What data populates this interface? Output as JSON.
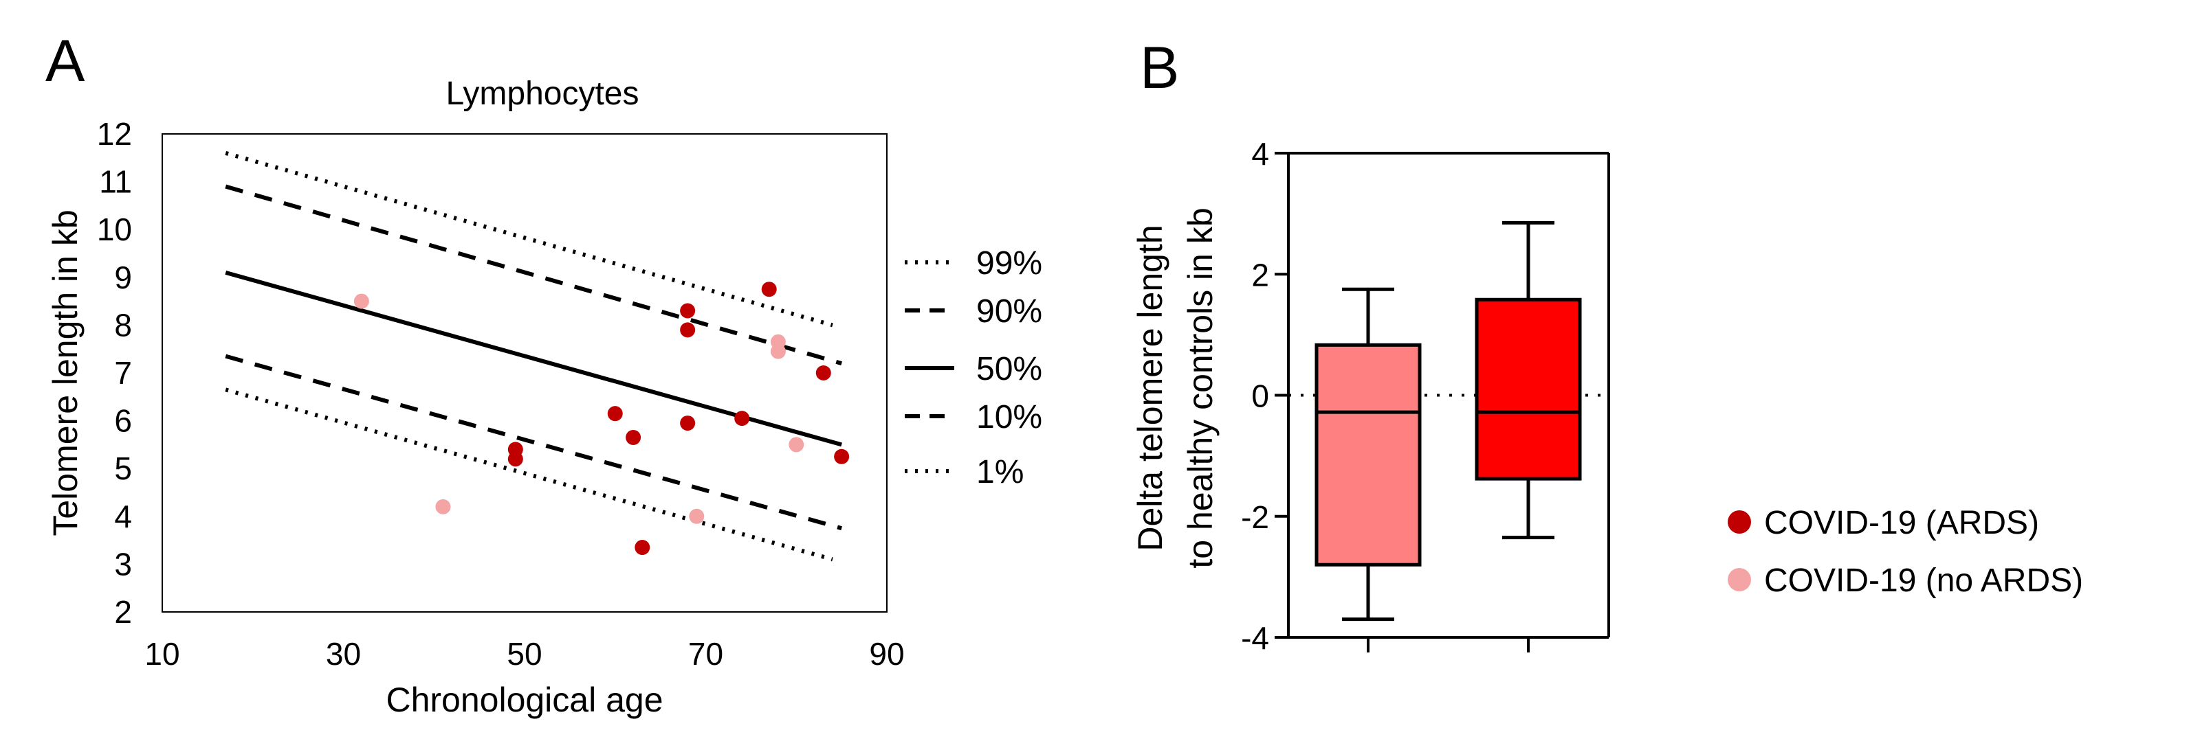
{
  "panels": [
    {
      "id": "A",
      "letter": "A"
    },
    {
      "id": "B",
      "letter": "B"
    }
  ],
  "colors": {
    "ards": "#c00000",
    "no_ards": "#f4a4a4",
    "box_ards": "#ff0000",
    "box_no_ards": "#ff8080",
    "line": "#000000"
  },
  "chart_data": [
    {
      "type": "scatter",
      "title": "Lymphocytes",
      "xlabel": "Chronological age",
      "ylabel": "Telomere length in kb",
      "xlim": [
        10,
        90
      ],
      "ylim": [
        2,
        12
      ],
      "xticks": [
        10,
        30,
        50,
        70,
        90
      ],
      "yticks": [
        2,
        3,
        4,
        5,
        6,
        7,
        8,
        9,
        10,
        11,
        12
      ],
      "grid": false,
      "percentile_lines": [
        {
          "name": "99%",
          "style": "dotted",
          "x": [
            17,
            84
          ],
          "y": [
            11.6,
            8.0
          ]
        },
        {
          "name": "90%",
          "style": "dashed",
          "x": [
            17,
            85
          ],
          "y": [
            10.9,
            7.2
          ]
        },
        {
          "name": "50%",
          "style": "solid",
          "x": [
            17,
            85
          ],
          "y": [
            9.1,
            5.5
          ]
        },
        {
          "name": "10%",
          "style": "dashed",
          "x": [
            17,
            85
          ],
          "y": [
            7.35,
            3.75
          ]
        },
        {
          "name": "1%",
          "style": "dotted",
          "x": [
            17,
            84
          ],
          "y": [
            6.65,
            3.1
          ]
        }
      ],
      "series": [
        {
          "name": "COVID-19 (ARDS)",
          "color": "#c00000",
          "points": [
            [
              77,
              8.75
            ],
            [
              68,
              8.3
            ],
            [
              68,
              7.9
            ],
            [
              83,
              7.0
            ],
            [
              60,
              6.15
            ],
            [
              74,
              6.05
            ],
            [
              68,
              5.95
            ],
            [
              62,
              5.65
            ],
            [
              49,
              5.4
            ],
            [
              49,
              5.2
            ],
            [
              85,
              5.25
            ],
            [
              63,
              3.35
            ]
          ]
        },
        {
          "name": "COVID-19 (no ARDS)",
          "color": "#f4a4a4",
          "points": [
            [
              32,
              8.5
            ],
            [
              78,
              7.65
            ],
            [
              78,
              7.45
            ],
            [
              80,
              5.5
            ],
            [
              41,
              4.2
            ],
            [
              69,
              4.0
            ]
          ]
        }
      ]
    },
    {
      "type": "box",
      "ylabel_lines": [
        "Delta telomere length",
        "to healthy controls in kb"
      ],
      "ylim": [
        -4,
        4
      ],
      "yticks": [
        -4,
        -2,
        0,
        2,
        4
      ],
      "reference_line": 0,
      "boxes": [
        {
          "name": "COVID-19 (no ARDS)",
          "color": "#ff8080",
          "min": -3.7,
          "q1": -2.8,
          "median": -0.28,
          "q3": 0.83,
          "max": 1.75
        },
        {
          "name": "COVID-19 (ARDS)",
          "color": "#ff0000",
          "min": -2.35,
          "q1": -1.38,
          "median": -0.28,
          "q3": 1.58,
          "max": 2.85
        }
      ]
    }
  ],
  "legend": {
    "placement": "bottom-right",
    "items": [
      {
        "label": "COVID-19 (ARDS)",
        "color": "#c00000"
      },
      {
        "label": "COVID-19 (no ARDS)",
        "color": "#f4a4a4"
      }
    ]
  }
}
